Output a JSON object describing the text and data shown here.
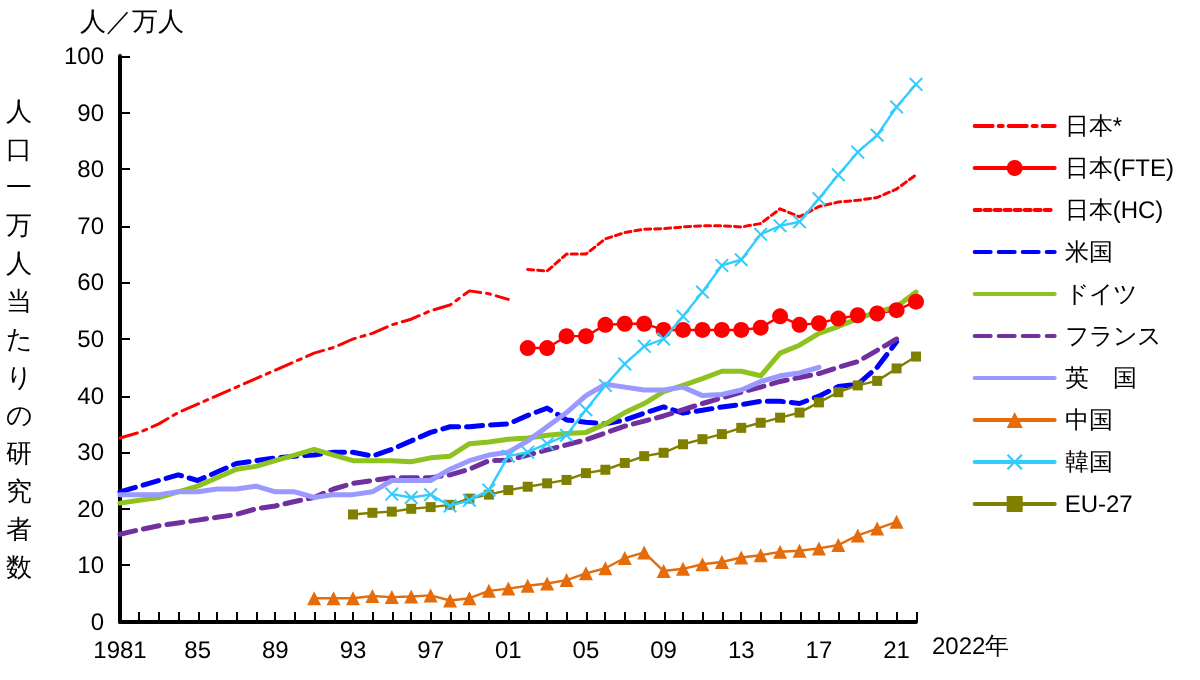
{
  "chart_data": {
    "type": "line",
    "ylabel": "人口一万人当たりの研究者数",
    "xlabel": "2022年",
    "annotations": [
      "人／万人"
    ],
    "xlim": [
      1981,
      2022
    ],
    "xticks": [
      {
        "value": 1981,
        "label": "1981"
      },
      {
        "value": 1982,
        "label": null
      },
      {
        "value": 1983,
        "label": null
      },
      {
        "value": 1984,
        "label": null
      },
      {
        "value": 1985,
        "label": "85"
      },
      {
        "value": 1986,
        "label": null
      },
      {
        "value": 1987,
        "label": null
      },
      {
        "value": 1988,
        "label": null
      },
      {
        "value": 1989,
        "label": "89"
      },
      {
        "value": 1990,
        "label": null
      },
      {
        "value": 1991,
        "label": null
      },
      {
        "value": 1992,
        "label": null
      },
      {
        "value": 1993,
        "label": "93"
      },
      {
        "value": 1994,
        "label": null
      },
      {
        "value": 1995,
        "label": null
      },
      {
        "value": 1996,
        "label": null
      },
      {
        "value": 1997,
        "label": "97"
      },
      {
        "value": 1998,
        "label": null
      },
      {
        "value": 1999,
        "label": null
      },
      {
        "value": 2000,
        "label": null
      },
      {
        "value": 2001,
        "label": "01"
      },
      {
        "value": 2002,
        "label": null
      },
      {
        "value": 2003,
        "label": null
      },
      {
        "value": 2004,
        "label": null
      },
      {
        "value": 2005,
        "label": "05"
      },
      {
        "value": 2006,
        "label": null
      },
      {
        "value": 2007,
        "label": null
      },
      {
        "value": 2008,
        "label": null
      },
      {
        "value": 2009,
        "label": "09"
      },
      {
        "value": 2010,
        "label": null
      },
      {
        "value": 2011,
        "label": null
      },
      {
        "value": 2012,
        "label": null
      },
      {
        "value": 2013,
        "label": "13"
      },
      {
        "value": 2014,
        "label": null
      },
      {
        "value": 2015,
        "label": null
      },
      {
        "value": 2016,
        "label": null
      },
      {
        "value": 2017,
        "label": "17"
      },
      {
        "value": 2018,
        "label": null
      },
      {
        "value": 2019,
        "label": null
      },
      {
        "value": 2020,
        "label": null
      },
      {
        "value": 2021,
        "label": "21"
      },
      {
        "value": 2022,
        "label": null
      }
    ],
    "ylim": [
      0,
      100
    ],
    "yticks": [
      0,
      10,
      20,
      30,
      40,
      50,
      60,
      70,
      80,
      90,
      100
    ],
    "grid": false,
    "legend": "right",
    "marker": "none",
    "series": [
      {
        "name": "日本*",
        "color": "#ff0000",
        "line_style": "dashdot",
        "x": [
          1981,
          1982,
          1983,
          1984,
          1985,
          1986,
          1987,
          1988,
          1989,
          1990,
          1991,
          1992,
          1993,
          1994,
          1995,
          1996,
          1997,
          1998,
          1999,
          2000,
          2001
        ],
        "values": [
          32.5,
          33.5,
          35,
          37,
          38.5,
          40,
          41.5,
          43,
          44.5,
          46,
          47.5,
          48.5,
          50,
          51,
          52.5,
          53.5,
          55,
          56,
          58.5,
          58,
          57
        ]
      },
      {
        "name": "日本(FTE)",
        "color": "#ff0000",
        "line_style": "solid",
        "marker": "circle",
        "x": [
          2002,
          2003,
          2004,
          2005,
          2006,
          2007,
          2008,
          2009,
          2010,
          2011,
          2012,
          2013,
          2014,
          2015,
          2016,
          2017,
          2018,
          2019,
          2020,
          2021,
          2022
        ],
        "values": [
          48.4,
          48.4,
          50.5,
          50.5,
          52.5,
          52.7,
          52.7,
          51.6,
          51.6,
          51.6,
          51.6,
          51.6,
          52,
          54,
          52.5,
          52.8,
          53.6,
          54.2,
          54.5,
          55.1,
          56.6
        ]
      },
      {
        "name": "日本(HC)",
        "color": "#ff0000",
        "line_style": "dotted",
        "x": [
          2002,
          2003,
          2004,
          2005,
          2006,
          2007,
          2008,
          2009,
          2010,
          2011,
          2012,
          2013,
          2014,
          2015,
          2016,
          2017,
          2018,
          2019,
          2020,
          2021,
          2022
        ],
        "values": [
          62.3,
          62,
          65,
          65,
          67.7,
          68.8,
          69.4,
          69.5,
          69.8,
          70,
          70,
          69.8,
          70.4,
          73,
          71.6,
          73.4,
          74.2,
          74.5,
          75,
          76.5,
          79
        ]
      },
      {
        "name": "米国",
        "color": "#0000ff",
        "line_style": "dashed",
        "x": [
          1981,
          1982,
          1983,
          1984,
          1985,
          1986,
          1987,
          1988,
          1989,
          1990,
          1991,
          1992,
          1993,
          1994,
          1995,
          1996,
          1997,
          1998,
          1999,
          2000,
          2001,
          2002,
          2003,
          2004,
          2005,
          2006,
          2007,
          2008,
          2009,
          2010,
          2011,
          2012,
          2013,
          2014,
          2015,
          2016,
          2017,
          2018,
          2019,
          2020,
          2021
        ],
        "values": [
          23,
          24,
          25,
          26,
          25,
          26.5,
          28,
          28.5,
          29,
          29.3,
          29.5,
          30,
          30,
          29.3,
          30.5,
          32,
          33.5,
          34.5,
          34.5,
          34.8,
          35,
          36.5,
          37.8,
          35.7,
          35.3,
          35,
          35.7,
          36.9,
          38,
          36.9,
          37.4,
          38,
          38.4,
          39,
          39,
          38.6,
          39.9,
          41.6,
          42,
          45,
          49.5
        ]
      },
      {
        "name": "ドイツ",
        "color": "#8dc21f",
        "line_style": "solid",
        "x": [
          1981,
          1982,
          1983,
          1984,
          1985,
          1986,
          1987,
          1988,
          1989,
          1990,
          1991,
          1992,
          1993,
          1994,
          1995,
          1996,
          1997,
          1998,
          1999,
          2000,
          2001,
          2002,
          2003,
          2004,
          2005,
          2006,
          2007,
          2008,
          2009,
          2010,
          2011,
          2012,
          2013,
          2014,
          2015,
          2016,
          2017,
          2018,
          2019,
          2020,
          2021,
          2022
        ],
        "values": [
          21,
          21.5,
          22,
          23,
          24,
          25.5,
          27,
          27.5,
          28.5,
          29.5,
          30.5,
          29.5,
          28.5,
          28.5,
          28.5,
          28.3,
          29,
          29.3,
          31.5,
          31.8,
          32.3,
          32.5,
          33,
          33.3,
          33.5,
          35,
          37,
          38.6,
          40.7,
          41.8,
          43,
          44.3,
          44.3,
          43.5,
          47.5,
          48.9,
          51,
          52.2,
          53.6,
          54.8,
          55.7,
          58.3
        ]
      },
      {
        "name": "フランス",
        "color": "#7030a0",
        "line_style": "dashed",
        "x": [
          1981,
          1982,
          1983,
          1984,
          1985,
          1986,
          1987,
          1988,
          1989,
          1990,
          1991,
          1992,
          1993,
          1994,
          1995,
          1996,
          1997,
          1998,
          1999,
          2000,
          2001,
          2002,
          2003,
          2004,
          2005,
          2006,
          2007,
          2008,
          2009,
          2010,
          2011,
          2012,
          2013,
          2014,
          2015,
          2016,
          2017,
          2018,
          2019,
          2020,
          2021
        ],
        "values": [
          15.5,
          16.3,
          17,
          17.5,
          18,
          18.5,
          19,
          20,
          20.5,
          21.3,
          22,
          23.5,
          24.5,
          25,
          25.5,
          25.5,
          25.5,
          26,
          27,
          28.5,
          28.6,
          29.5,
          30.4,
          31.3,
          32.2,
          33.4,
          34.6,
          35.5,
          36.4,
          37.5,
          38.6,
          39.6,
          40.6,
          41.5,
          42.5,
          43.2,
          43.9,
          45,
          46,
          48,
          50
        ]
      },
      {
        "name": "英　国",
        "color": "#9999ff",
        "line_style": "solid",
        "x": [
          1981,
          1982,
          1983,
          1984,
          1985,
          1986,
          1987,
          1988,
          1989,
          1990,
          1991,
          1992,
          1993,
          1994,
          1995,
          1996,
          1997,
          1998,
          1999,
          2000,
          2001,
          2002,
          2003,
          2004,
          2005,
          2006,
          2007,
          2008,
          2009,
          2010,
          2011,
          2012,
          2013,
          2014,
          2015,
          2016,
          2017
        ],
        "values": [
          22.5,
          22.5,
          22.5,
          23,
          23,
          23.5,
          23.5,
          24,
          23,
          23,
          22,
          22.5,
          22.5,
          23,
          25,
          25,
          25,
          27,
          28.5,
          29.5,
          30,
          32,
          34.5,
          37,
          40,
          42,
          41.5,
          41,
          41,
          41.5,
          40,
          40.2,
          41,
          42.5,
          43.5,
          44,
          45
        ]
      },
      {
        "name": "中国",
        "color": "#e46c0a",
        "line_style": "solid",
        "marker": "triangle",
        "x": [
          1991,
          1992,
          1993,
          1994,
          1995,
          1996,
          1997,
          1998,
          1999,
          2000,
          2001,
          2002,
          2003,
          2004,
          2005,
          2006,
          2007,
          2008,
          2009,
          2010,
          2011,
          2012,
          2013,
          2014,
          2015,
          2016,
          2017,
          2018,
          2019,
          2020,
          2021
        ],
        "values": [
          4.2,
          4.2,
          4.2,
          4.6,
          4.4,
          4.5,
          4.7,
          3.8,
          4.2,
          5.5,
          5.9,
          6.4,
          6.8,
          7.4,
          8.6,
          9.5,
          11.3,
          12.3,
          9,
          9.4,
          10.2,
          10.6,
          11.4,
          11.8,
          12.4,
          12.6,
          13,
          13.6,
          15.3,
          16.5,
          17.7
        ]
      },
      {
        "name": "韓国",
        "color": "#33ccff",
        "line_style": "solid",
        "marker": "cross",
        "x": [
          1995,
          1996,
          1997,
          1998,
          1999,
          2000,
          2001,
          2002,
          2003,
          2004,
          2005,
          2006,
          2007,
          2008,
          2009,
          2010,
          2011,
          2012,
          2013,
          2014,
          2015,
          2016,
          2017,
          2018,
          2019,
          2020,
          2021,
          2022
        ],
        "values": [
          22.6,
          22,
          22.5,
          20.5,
          21.5,
          23.3,
          29.3,
          30,
          31.5,
          33,
          37.5,
          41.8,
          45.6,
          48.7,
          50,
          54,
          58.3,
          63,
          64,
          68.5,
          70,
          70.7,
          74.8,
          79,
          83,
          86,
          91,
          95
        ]
      },
      {
        "name": "EU-27",
        "color": "#808000",
        "line_style": "solid",
        "marker": "square",
        "x": [
          1993,
          1994,
          1995,
          1996,
          1997,
          1998,
          1999,
          2000,
          2001,
          2002,
          2003,
          2004,
          2005,
          2006,
          2007,
          2008,
          2009,
          2010,
          2011,
          2012,
          2013,
          2014,
          2015,
          2016,
          2017,
          2018,
          2019,
          2020,
          2021,
          2022
        ],
        "values": [
          19,
          19.3,
          19.5,
          20,
          20.3,
          20.7,
          21.8,
          22.5,
          23.3,
          23.9,
          24.5,
          25.1,
          26.3,
          26.9,
          28.1,
          29.3,
          29.9,
          31.4,
          32.3,
          33.2,
          34.3,
          35.2,
          36.1,
          37,
          38.8,
          40.6,
          41.8,
          42.6,
          44.8,
          46.9
        ]
      }
    ]
  }
}
